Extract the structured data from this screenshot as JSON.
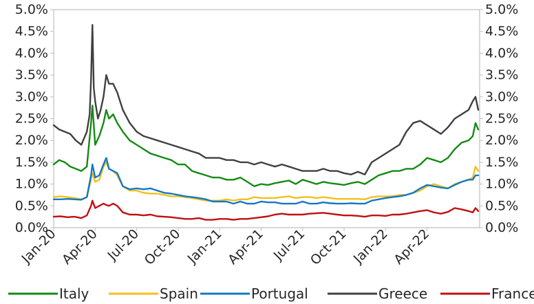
{
  "chart_data": {
    "type": "line",
    "title": "",
    "xlabel": "",
    "ylabel": "",
    "ylim": [
      0,
      5
    ],
    "y_ticks": [
      "0.0%",
      "0.5%",
      "1.0%",
      "1.5%",
      "2.0%",
      "2.5%",
      "3.0%",
      "3.5%",
      "4.0%",
      "4.5%",
      "5.0%"
    ],
    "x_ticks": [
      "Jan-20",
      "Apr-20",
      "Jul-20",
      "Oct-20",
      "Jan-21",
      "Apr-21",
      "Jul-21",
      "Oct-21",
      "Jan-22",
      "Apr-22"
    ],
    "x_unit": "months since Jan-20",
    "xlim": [
      0,
      30.8
    ],
    "legend_position": "bottom",
    "series": [
      {
        "name": "Italy",
        "color": "#138a13",
        "x": [
          0,
          0.4,
          0.8,
          1.2,
          1.6,
          2.0,
          2.4,
          2.7,
          2.8,
          3.0,
          3.3,
          3.6,
          3.8,
          4.0,
          4.3,
          4.6,
          5.0,
          5.5,
          6.0,
          6.5,
          7.0,
          7.5,
          8.0,
          8.5,
          9.0,
          9.5,
          10.0,
          10.5,
          11.0,
          11.5,
          12.0,
          12.5,
          13.0,
          13.5,
          14.0,
          14.5,
          15.0,
          15.5,
          16.0,
          16.5,
          17.0,
          17.5,
          18.0,
          18.5,
          19.0,
          19.5,
          20.0,
          20.5,
          21.0,
          21.5,
          22.0,
          22.5,
          23.0,
          23.5,
          24.0,
          24.5,
          25.0,
          25.5,
          26.0,
          26.5,
          27.0,
          27.5,
          28.0,
          28.5,
          29.0,
          29.5,
          30.0,
          30.3,
          30.5,
          30.7
        ],
        "y": [
          1.45,
          1.55,
          1.5,
          1.4,
          1.35,
          1.3,
          1.4,
          2.4,
          2.8,
          1.9,
          2.1,
          2.4,
          2.7,
          2.5,
          2.6,
          2.4,
          2.2,
          2.0,
          1.9,
          1.8,
          1.7,
          1.65,
          1.6,
          1.55,
          1.45,
          1.45,
          1.3,
          1.25,
          1.2,
          1.15,
          1.15,
          1.1,
          1.1,
          1.15,
          1.05,
          0.95,
          1.0,
          0.98,
          1.02,
          1.05,
          1.08,
          1.0,
          1.1,
          1.05,
          1.0,
          1.05,
          1.02,
          1.0,
          0.98,
          1.02,
          1.05,
          1.0,
          1.1,
          1.2,
          1.25,
          1.3,
          1.3,
          1.35,
          1.35,
          1.45,
          1.6,
          1.55,
          1.5,
          1.6,
          1.8,
          1.95,
          2.0,
          2.1,
          2.4,
          2.25
        ]
      },
      {
        "name": "Spain",
        "color": "#f2c01e",
        "x": [
          0,
          0.5,
          1.0,
          1.5,
          2.0,
          2.4,
          2.7,
          2.8,
          3.0,
          3.3,
          3.6,
          3.8,
          4.0,
          4.3,
          4.6,
          5.0,
          5.5,
          6.0,
          6.5,
          7.0,
          7.5,
          8.0,
          8.5,
          9.0,
          9.5,
          10.0,
          10.5,
          11.0,
          11.5,
          12.0,
          12.5,
          13.0,
          13.5,
          14.0,
          14.5,
          15.0,
          15.5,
          16.0,
          16.5,
          17.0,
          17.5,
          18.0,
          18.5,
          19.0,
          19.5,
          20.0,
          20.5,
          21.0,
          21.5,
          22.0,
          22.5,
          23.0,
          23.5,
          24.0,
          24.5,
          25.0,
          25.5,
          26.0,
          26.5,
          27.0,
          27.5,
          28.0,
          28.5,
          29.0,
          29.5,
          30.0,
          30.3,
          30.5,
          30.7
        ],
        "y": [
          0.7,
          0.72,
          0.7,
          0.68,
          0.65,
          0.7,
          1.1,
          1.25,
          1.05,
          1.1,
          1.4,
          1.5,
          1.35,
          1.3,
          1.2,
          0.95,
          0.85,
          0.85,
          0.8,
          0.78,
          0.78,
          0.75,
          0.72,
          0.72,
          0.7,
          0.68,
          0.65,
          0.62,
          0.62,
          0.62,
          0.65,
          0.62,
          0.65,
          0.65,
          0.7,
          0.68,
          0.68,
          0.68,
          0.7,
          0.72,
          0.68,
          0.7,
          0.7,
          0.68,
          0.7,
          0.68,
          0.66,
          0.66,
          0.66,
          0.66,
          0.65,
          0.7,
          0.72,
          0.72,
          0.72,
          0.75,
          0.75,
          0.8,
          0.85,
          0.95,
          1.0,
          0.95,
          0.9,
          1.0,
          1.05,
          1.1,
          1.15,
          1.4,
          1.3
        ]
      },
      {
        "name": "Portugal",
        "color": "#1478c3",
        "x": [
          0,
          0.5,
          1.0,
          1.5,
          2.0,
          2.4,
          2.7,
          2.8,
          3.0,
          3.3,
          3.6,
          3.8,
          4.0,
          4.3,
          4.6,
          5.0,
          5.5,
          6.0,
          6.5,
          7.0,
          7.5,
          8.0,
          8.5,
          9.0,
          9.5,
          10.0,
          10.5,
          11.0,
          11.5,
          12.0,
          12.5,
          13.0,
          13.5,
          14.0,
          14.5,
          15.0,
          15.5,
          16.0,
          16.5,
          17.0,
          17.5,
          18.0,
          18.5,
          19.0,
          19.5,
          20.0,
          20.5,
          21.0,
          21.5,
          22.0,
          22.5,
          23.0,
          23.5,
          24.0,
          24.5,
          25.0,
          25.5,
          26.0,
          26.5,
          27.0,
          27.5,
          28.0,
          28.5,
          29.0,
          29.5,
          30.0,
          30.3,
          30.5,
          30.7
        ],
        "y": [
          0.65,
          0.65,
          0.66,
          0.65,
          0.64,
          0.7,
          1.2,
          1.45,
          1.15,
          1.2,
          1.45,
          1.6,
          1.35,
          1.3,
          1.25,
          0.95,
          0.88,
          0.9,
          0.88,
          0.9,
          0.85,
          0.8,
          0.78,
          0.75,
          0.72,
          0.7,
          0.68,
          0.65,
          0.6,
          0.6,
          0.6,
          0.55,
          0.6,
          0.55,
          0.55,
          0.6,
          0.58,
          0.58,
          0.55,
          0.55,
          0.55,
          0.6,
          0.55,
          0.55,
          0.58,
          0.56,
          0.55,
          0.55,
          0.56,
          0.55,
          0.55,
          0.62,
          0.65,
          0.68,
          0.7,
          0.72,
          0.75,
          0.8,
          0.9,
          0.98,
          0.95,
          0.92,
          0.9,
          0.98,
          1.05,
          1.1,
          1.1,
          1.2,
          1.2
        ]
      },
      {
        "name": "Greece",
        "color": "#404040",
        "x": [
          0,
          0.4,
          0.8,
          1.2,
          1.6,
          2.0,
          2.4,
          2.6,
          2.7,
          2.8,
          2.9,
          3.0,
          3.2,
          3.4,
          3.6,
          3.8,
          4.0,
          4.3,
          4.6,
          5.0,
          5.5,
          6.0,
          6.5,
          7.0,
          7.5,
          8.0,
          8.5,
          9.0,
          9.5,
          10.0,
          10.5,
          11.0,
          11.5,
          12.0,
          12.5,
          13.0,
          13.5,
          14.0,
          14.5,
          15.0,
          15.5,
          16.0,
          16.5,
          17.0,
          17.5,
          18.0,
          18.5,
          19.0,
          19.5,
          20.0,
          20.5,
          21.0,
          21.5,
          22.0,
          22.5,
          23.0,
          23.5,
          24.0,
          24.5,
          25.0,
          25.5,
          26.0,
          26.5,
          27.0,
          27.5,
          28.0,
          28.5,
          29.0,
          29.5,
          30.0,
          30.3,
          30.5,
          30.7
        ],
        "y": [
          2.35,
          2.25,
          2.2,
          2.15,
          2.0,
          1.9,
          2.2,
          2.6,
          3.4,
          4.65,
          3.2,
          2.9,
          2.5,
          2.7,
          3.0,
          3.5,
          3.3,
          3.3,
          3.1,
          2.7,
          2.4,
          2.2,
          2.1,
          2.05,
          2.0,
          1.95,
          1.9,
          1.85,
          1.8,
          1.75,
          1.7,
          1.6,
          1.6,
          1.6,
          1.55,
          1.55,
          1.5,
          1.5,
          1.45,
          1.5,
          1.45,
          1.4,
          1.45,
          1.4,
          1.35,
          1.3,
          1.3,
          1.3,
          1.35,
          1.3,
          1.3,
          1.25,
          1.22,
          1.28,
          1.22,
          1.5,
          1.6,
          1.7,
          1.8,
          1.9,
          2.2,
          2.4,
          2.45,
          2.35,
          2.25,
          2.15,
          2.3,
          2.5,
          2.6,
          2.7,
          2.9,
          3.0,
          2.7
        ]
      },
      {
        "name": "France",
        "color": "#c01010",
        "x": [
          0,
          0.5,
          1.0,
          1.5,
          2.0,
          2.4,
          2.7,
          2.8,
          3.0,
          3.3,
          3.6,
          3.8,
          4.0,
          4.3,
          4.6,
          5.0,
          5.5,
          6.0,
          6.5,
          7.0,
          7.5,
          8.0,
          8.5,
          9.0,
          9.5,
          10.0,
          10.5,
          11.0,
          11.5,
          12.0,
          12.5,
          13.0,
          13.5,
          14.0,
          14.5,
          15.0,
          15.5,
          16.0,
          16.5,
          17.0,
          17.5,
          18.0,
          18.5,
          19.0,
          19.5,
          20.0,
          20.5,
          21.0,
          21.5,
          22.0,
          22.5,
          23.0,
          23.5,
          24.0,
          24.5,
          25.0,
          25.5,
          26.0,
          26.5,
          27.0,
          27.5,
          28.0,
          28.5,
          29.0,
          29.5,
          30.0,
          30.3,
          30.5,
          30.7
        ],
        "y": [
          0.25,
          0.26,
          0.24,
          0.25,
          0.22,
          0.28,
          0.5,
          0.62,
          0.45,
          0.5,
          0.55,
          0.52,
          0.5,
          0.55,
          0.5,
          0.35,
          0.3,
          0.3,
          0.28,
          0.3,
          0.26,
          0.25,
          0.24,
          0.22,
          0.2,
          0.2,
          0.22,
          0.18,
          0.18,
          0.2,
          0.2,
          0.18,
          0.2,
          0.2,
          0.22,
          0.24,
          0.26,
          0.3,
          0.32,
          0.3,
          0.3,
          0.3,
          0.32,
          0.33,
          0.34,
          0.32,
          0.3,
          0.28,
          0.28,
          0.27,
          0.25,
          0.28,
          0.28,
          0.27,
          0.3,
          0.3,
          0.32,
          0.35,
          0.38,
          0.4,
          0.35,
          0.32,
          0.36,
          0.45,
          0.42,
          0.38,
          0.35,
          0.45,
          0.38
        ]
      }
    ]
  }
}
